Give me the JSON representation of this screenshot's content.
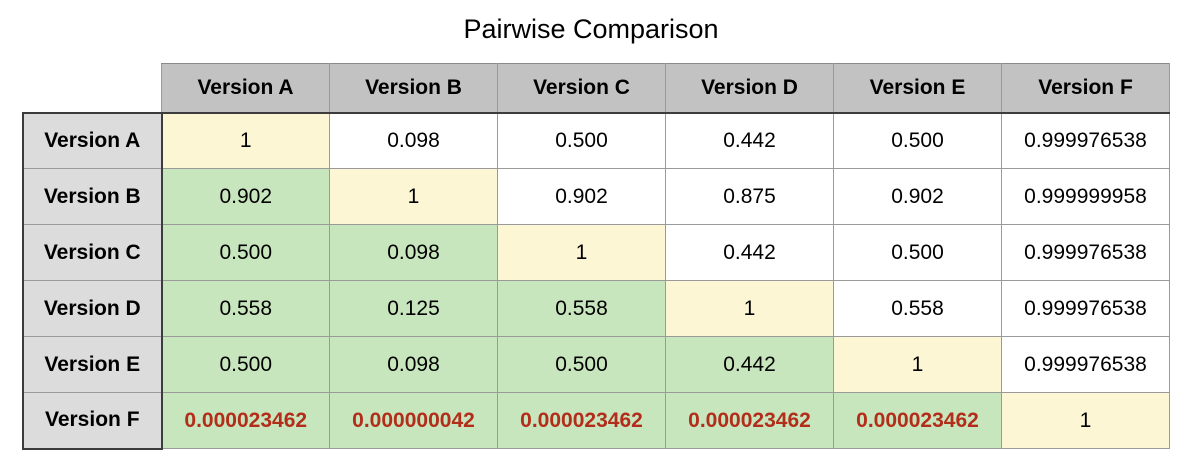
{
  "title": "Pairwise Comparison",
  "table": {
    "columns": [
      "Version A",
      "Version B",
      "Version C",
      "Version D",
      "Version E",
      "Version F"
    ],
    "rows": [
      {
        "label": "Version A",
        "display": [
          "1",
          "0.098",
          "0.500",
          "0.442",
          "0.500",
          "0.999976538"
        ]
      },
      {
        "label": "Version B",
        "display": [
          "0.902",
          "1",
          "0.902",
          "0.875",
          "0.902",
          "0.999999958"
        ]
      },
      {
        "label": "Version C",
        "display": [
          "0.500",
          "0.098",
          "1",
          "0.442",
          "0.500",
          "0.999976538"
        ]
      },
      {
        "label": "Version D",
        "display": [
          "0.558",
          "0.125",
          "0.558",
          "1",
          "0.558",
          "0.999976538"
        ]
      },
      {
        "label": "Version E",
        "display": [
          "0.500",
          "0.098",
          "0.500",
          "0.442",
          "1",
          "0.999976538"
        ]
      },
      {
        "label": "Version F",
        "display": [
          "0.000023462",
          "0.000000042",
          "0.000023462",
          "0.000023462",
          "0.000023462",
          "1"
        ],
        "negative_style": true
      }
    ]
  },
  "chart_data": {
    "type": "table",
    "title": "Pairwise Comparison",
    "columns": [
      "Version A",
      "Version B",
      "Version C",
      "Version D",
      "Version E",
      "Version F"
    ],
    "rows": [
      "Version A",
      "Version B",
      "Version C",
      "Version D",
      "Version E",
      "Version F"
    ],
    "values": [
      [
        1,
        0.098,
        0.5,
        0.442,
        0.5,
        0.999976538
      ],
      [
        0.902,
        1,
        0.902,
        0.875,
        0.902,
        0.999999958
      ],
      [
        0.5,
        0.098,
        1,
        0.442,
        0.5,
        0.999976538
      ],
      [
        0.558,
        0.125,
        0.558,
        1,
        0.558,
        0.999976538
      ],
      [
        0.5,
        0.098,
        0.5,
        0.442,
        1,
        0.999976538
      ],
      [
        2.3462e-05,
        4.2e-08,
        2.3462e-05,
        2.3462e-05,
        2.3462e-05,
        1
      ]
    ],
    "cell_shading": {
      "diagonal": "pale-yellow",
      "below_diagonal": "green",
      "above_diagonal": "white",
      "last_row_offdiagonal_text": "red-bold"
    }
  },
  "colors": {
    "col_header_bg": "#c2c2c2",
    "row_header_bg": "#dcdcdc",
    "diagonal_bg": "#fcf6d5",
    "lower_bg": "#c8e6bd",
    "upper_bg": "#ffffff",
    "negative_text": "#b22d1a",
    "border_dark": "#3c3c3c",
    "border_light": "#9a9a9a"
  }
}
